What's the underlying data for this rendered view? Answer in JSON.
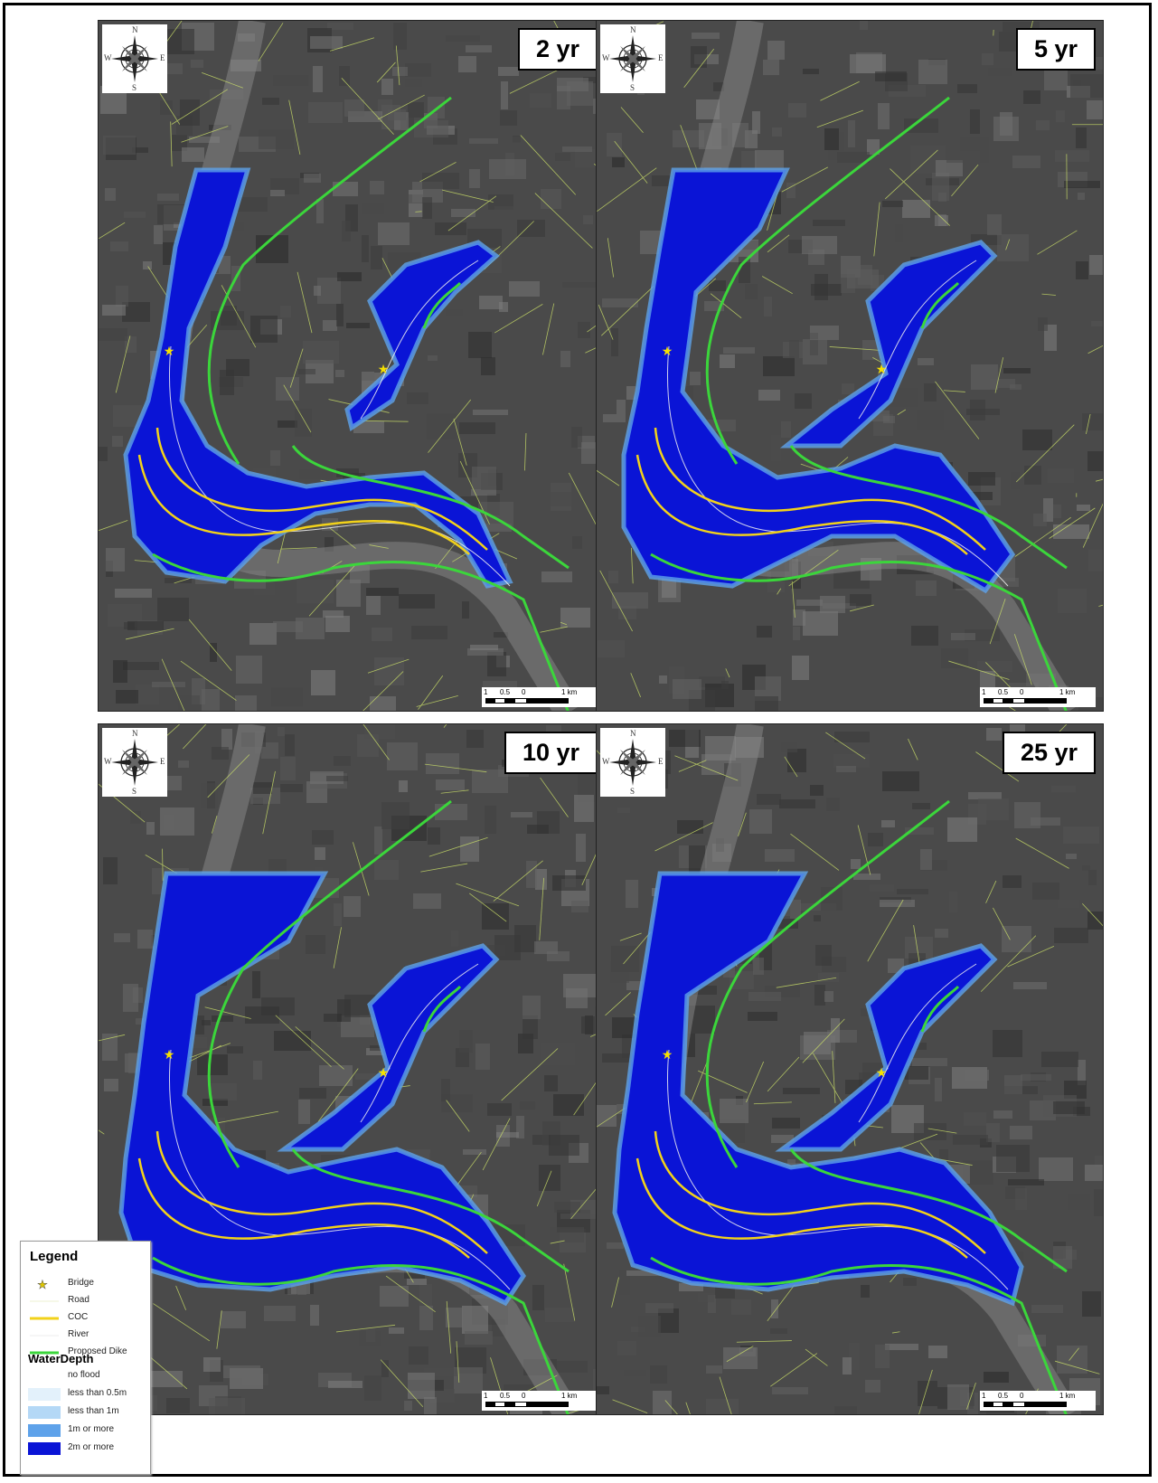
{
  "panels": [
    {
      "id": "p2",
      "label": "2 yr"
    },
    {
      "id": "p5",
      "label": "5 yr"
    },
    {
      "id": "p10",
      "label": "10 yr"
    },
    {
      "id": "p25",
      "label": "25 yr"
    }
  ],
  "compass": {
    "n": "N",
    "s": "S",
    "e": "E",
    "w": "W"
  },
  "scalebar": {
    "ticks": [
      "1",
      "0.5",
      "0",
      "1 km"
    ]
  },
  "legend": {
    "title": "Legend",
    "items": [
      {
        "label": "Bridge",
        "symbol": "star-icon"
      },
      {
        "label": "Road",
        "symbol": "road-line"
      },
      {
        "label": "COC",
        "symbol": "coc-line"
      },
      {
        "label": "River",
        "symbol": "river-line"
      },
      {
        "label": "Proposed Dike",
        "symbol": "dike-line"
      }
    ],
    "depth_title": "WaterDepth",
    "depth_items": [
      {
        "label": "no flood",
        "color": "#ffffff"
      },
      {
        "label": "less than 0.5m",
        "color": "#e3f1fb"
      },
      {
        "label": "less than 1m",
        "color": "#b4d8f6"
      },
      {
        "label": "1m or more",
        "color": "#5ea2ea"
      },
      {
        "label": "2m or more",
        "color": "#0a14d6"
      }
    ]
  },
  "colors": {
    "flood_deep": "#0a14d6",
    "flood_mid": "#5ea2ea",
    "flood_light": "#b4d8f6",
    "dike": "#3bd63b",
    "coc": "#f2d21a",
    "road": "#d2e86a",
    "bridge": "#f5e000"
  }
}
